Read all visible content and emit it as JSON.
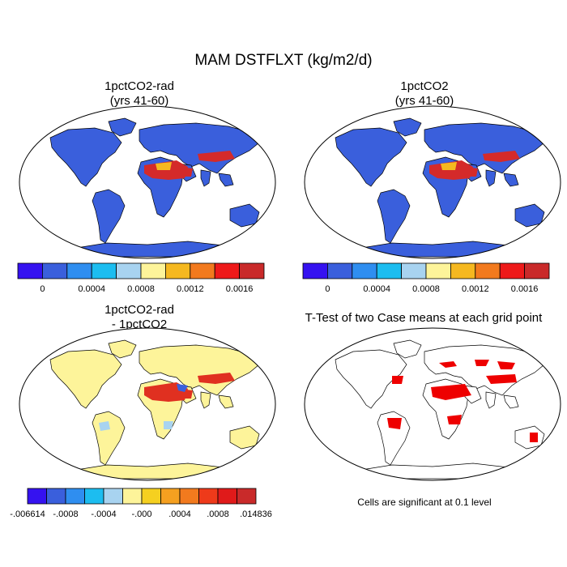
{
  "figure": {
    "title": "MAM DSTFLXT (kg/m2/d)"
  },
  "panels": [
    {
      "id": "top-left",
      "title_line1": "1pctCO2-rad",
      "title_line2": "(yrs 41-60)",
      "kind": "field",
      "background_color": "#3a5fdc",
      "hotspot_color": "#d42a2a"
    },
    {
      "id": "top-right",
      "title_line1": "1pctCO2",
      "title_line2": "(yrs 41-60)",
      "kind": "field",
      "background_color": "#3a5fdc",
      "hotspot_color": "#d42a2a"
    },
    {
      "id": "bottom-left",
      "title_line1": "1pctCO2-rad",
      "title_line2": "- 1pctCO2",
      "kind": "difference",
      "background_color": "#fdf49a",
      "hotspot_color": "#e03020"
    },
    {
      "id": "bottom-right",
      "title_line1": "T-Test of two Case means at each grid point",
      "title_line2": "",
      "kind": "significance",
      "background_color": "#ffffff",
      "hotspot_color": "#ee0000"
    }
  ],
  "colorbar_top": {
    "colors": [
      "#3512f0",
      "#3a5fdc",
      "#2f8ef0",
      "#1cbdf0",
      "#a8d3f0",
      "#fdf49a",
      "#f5b820",
      "#f27a1e",
      "#ee1a1a",
      "#c92a2a"
    ],
    "labels": [
      "0",
      "0.0004",
      "0.0008",
      "0.0012",
      "0.0016"
    ]
  },
  "colorbar_bottom": {
    "colors": [
      "#3512f0",
      "#3a5fdc",
      "#2f8ef0",
      "#1cbdf0",
      "#a8d3f0",
      "#fdf49a",
      "#f5d020",
      "#f5a020",
      "#f27a1e",
      "#ee3a1a",
      "#e01a1a",
      "#c92a2a"
    ],
    "labels": [
      "-.006614",
      "-.0008",
      "-.0004",
      "-.000",
      ".0004",
      ".0008",
      ".014836"
    ]
  },
  "significance_note": "Cells are significant at 0.1 level"
}
